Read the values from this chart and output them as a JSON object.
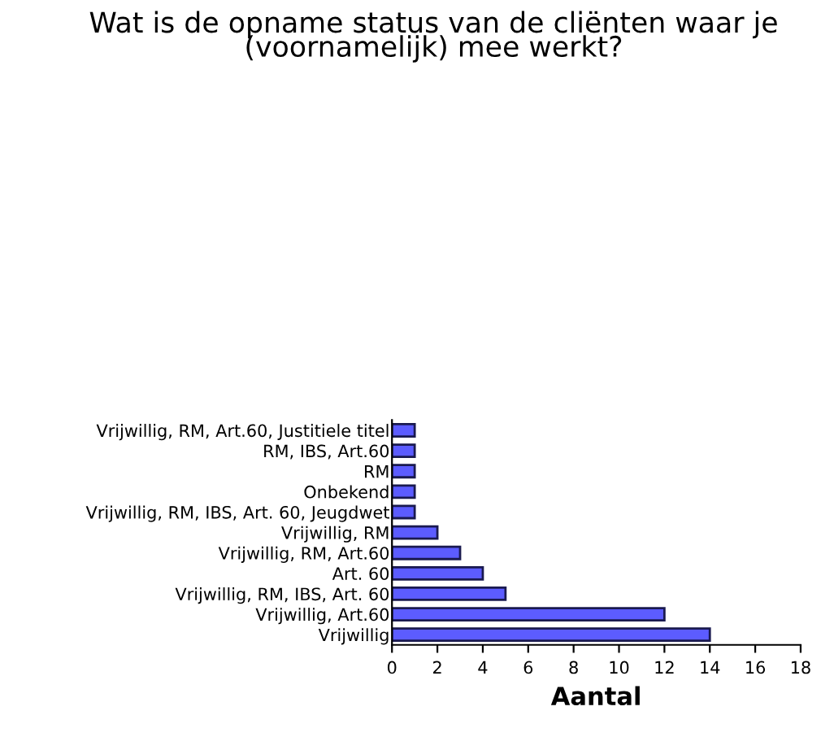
{
  "chart_data": {
    "type": "bar",
    "orientation": "horizontal",
    "title": "Wat is de opname status van de cliënten waar je\n(voornamelijk) mee werkt?",
    "xlabel": "Aantal",
    "categories": [
      "Vrijwillig, RM, Art.60, Justitiele titel",
      "RM, IBS, Art.60",
      "RM",
      "Onbekend",
      "Vrijwillig, RM, IBS, Art. 60, Jeugdwet",
      "Vrijwillig, RM",
      "Vrijwillig, RM, Art.60",
      "Art. 60",
      "Vrijwillig, RM, IBS, Art. 60",
      "Vrijwillig, Art.60",
      "Vrijwillig"
    ],
    "values": [
      1,
      1,
      1,
      1,
      1,
      2,
      3,
      4,
      5,
      12,
      14
    ],
    "color": "#5c5cff",
    "xlim": [
      0,
      18
    ],
    "xticks": [
      0,
      2,
      4,
      6,
      8,
      10,
      12,
      14,
      16,
      18
    ],
    "grid": false,
    "legend": false
  }
}
